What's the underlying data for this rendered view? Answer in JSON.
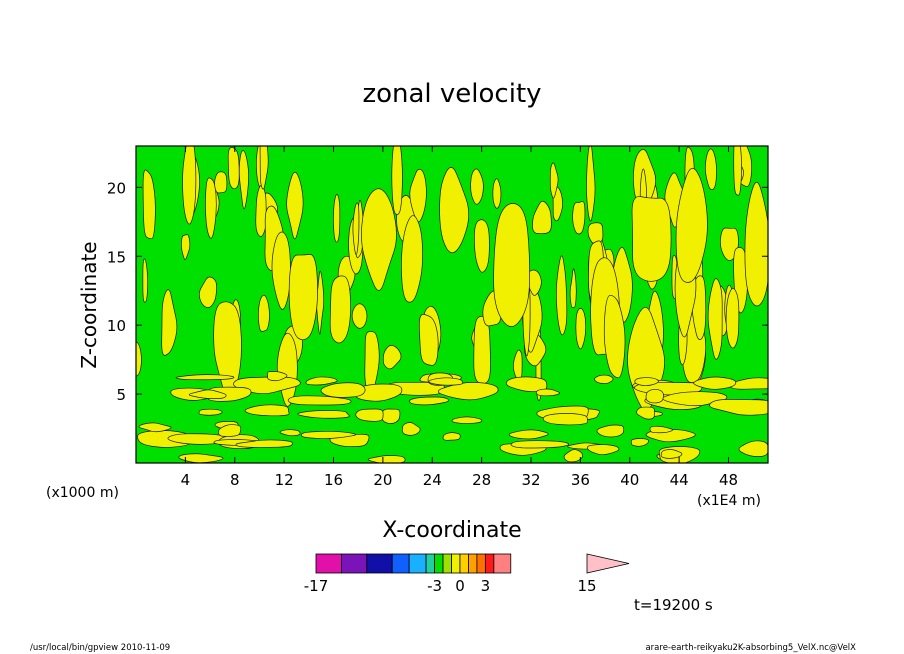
{
  "chart_data": {
    "type": "heatmap",
    "title": "zonal velocity",
    "xlabel": "X-coordinate",
    "ylabel": "Z-coordinate",
    "x_unit_left": "(x1000 m)",
    "x_unit_right": "(x1E4 m)",
    "xlim": [
      0,
      51.2
    ],
    "ylim": [
      0,
      23
    ],
    "x_ticks": [
      4,
      8,
      12,
      16,
      20,
      24,
      28,
      32,
      36,
      40,
      44,
      48
    ],
    "y_ticks": [
      5,
      10,
      15,
      20
    ],
    "colorbar": {
      "levels": [
        -17,
        -14,
        -11,
        -8,
        -6,
        -4,
        -3,
        -2,
        -1,
        0,
        1,
        2,
        3,
        4,
        6,
        9,
        12,
        15
      ],
      "colors": [
        "#e010a8",
        "#7a14b8",
        "#1010a8",
        "#1060ff",
        "#18b0ff",
        "#20d0a0",
        "#00e000",
        "#a0e000",
        "#f0f000",
        "#ffd000",
        "#ffa000",
        "#ff7000",
        "#ff1a1a",
        "#ff8080"
      ],
      "extend_color": "#ffc0c8",
      "labels": [
        "-17",
        "-3",
        "0",
        "3",
        "15"
      ]
    },
    "field_colors": {
      "negative": "#00e000",
      "positive": "#f0f000"
    },
    "time_label": "t=19200 s"
  },
  "footer": {
    "left": "/usr/local/bin/gpview  2010-11-09",
    "right": "arare-earth-reikyaku2K-absorbing5_VelX.nc@VelX"
  }
}
